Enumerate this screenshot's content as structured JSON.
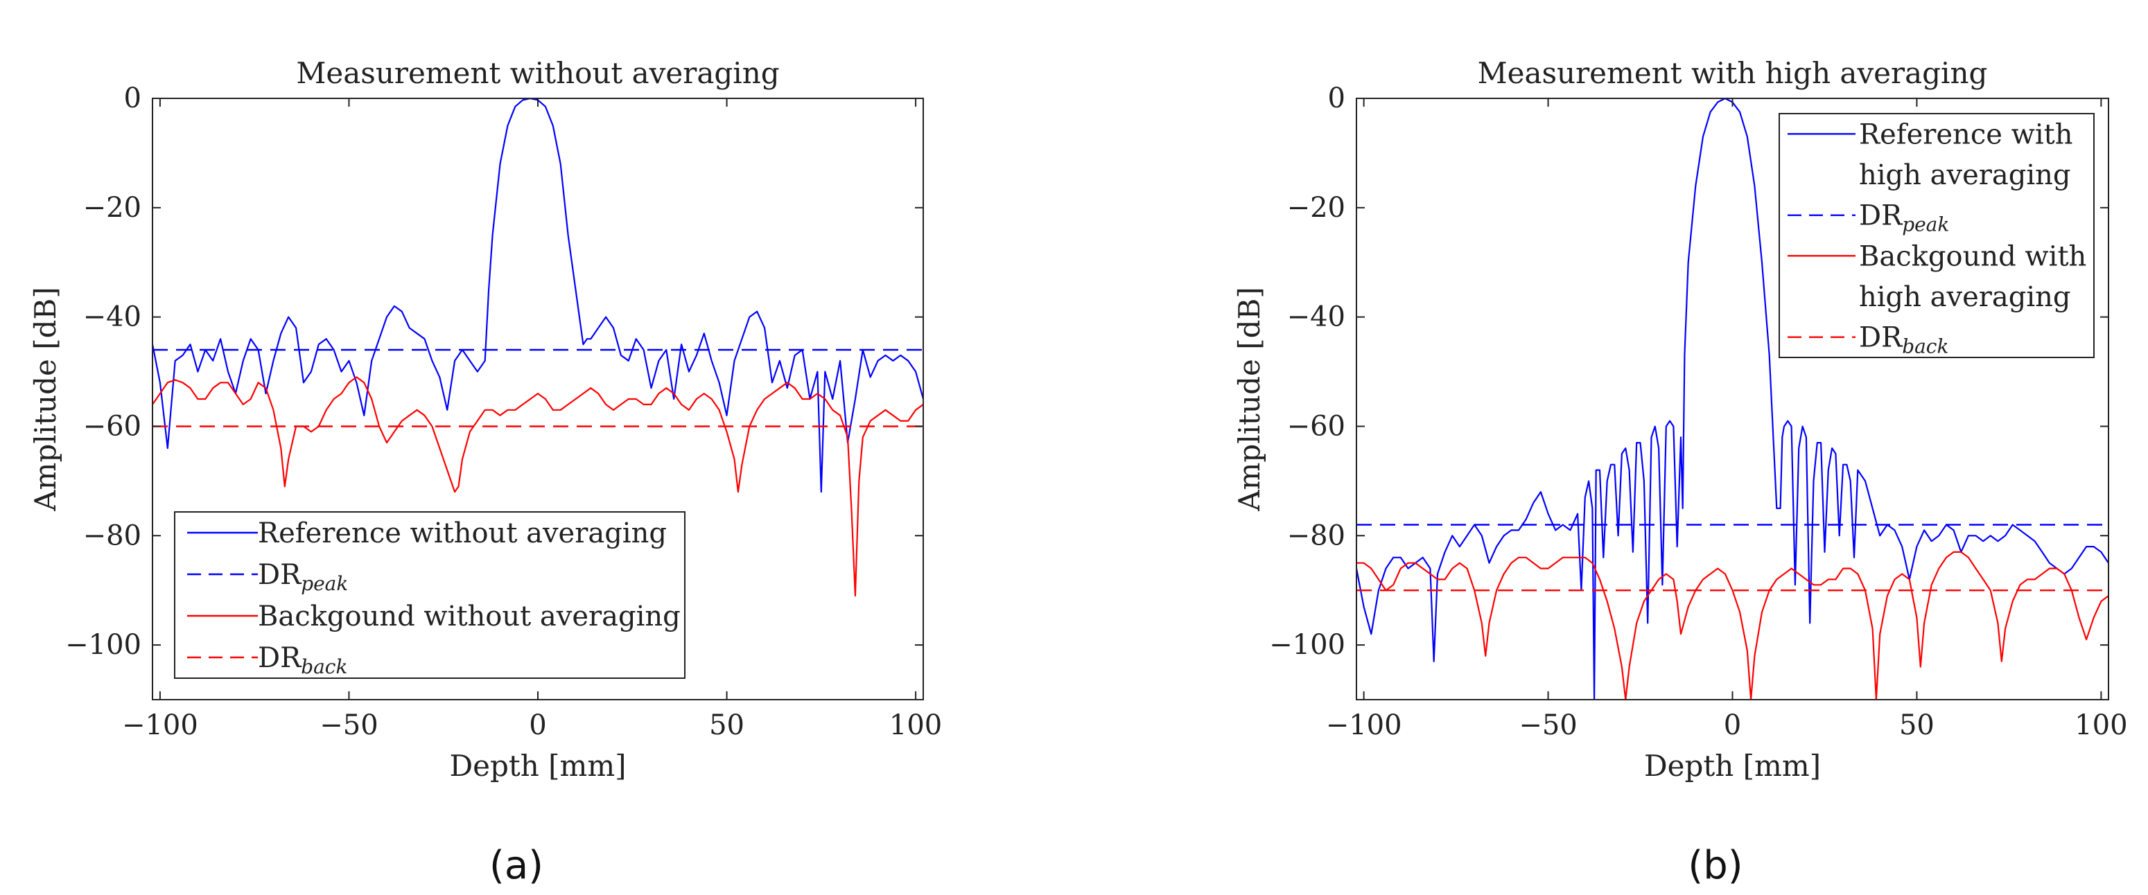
{
  "chart_data": [
    {
      "type": "line",
      "panel_label": "(a)",
      "title": "Measurement without averaging",
      "xlabel": "Depth [mm]",
      "ylabel": "Amplitude [dB]",
      "xlim": [
        -102,
        102
      ],
      "ylim": [
        -110,
        0
      ],
      "xticks": [
        -100,
        -50,
        0,
        50,
        100
      ],
      "yticks": [
        0,
        -20,
        -40,
        -60,
        -80,
        -100
      ],
      "xtick_labels": [
        "−100",
        "−50",
        "0",
        "50",
        "100"
      ],
      "ytick_labels": [
        "0",
        "−20",
        "−40",
        "−60",
        "−80",
        "−100"
      ],
      "legend_position": "bottom-left",
      "series": [
        {
          "name": "Reference without averaging",
          "label_main": "Reference without averaging",
          "label_sub": "",
          "color": "#0000ff",
          "dash": "solid",
          "x": [
            -102,
            -100,
            -98,
            -96,
            -94,
            -92,
            -90,
            -88,
            -86,
            -84,
            -82,
            -80,
            -78,
            -76,
            -74,
            -72,
            -70,
            -68,
            -66,
            -64,
            -62,
            -60,
            -58,
            -56,
            -54,
            -52,
            -50,
            -48,
            -46,
            -44,
            -42,
            -40,
            -38,
            -36,
            -34,
            -32,
            -30,
            -28,
            -26,
            -24,
            -22,
            -20,
            -18,
            -16,
            -14,
            -13,
            -12,
            -10,
            -8,
            -6,
            -4,
            -2,
            0,
            2,
            4,
            6,
            8,
            10,
            12,
            13,
            14,
            16,
            18,
            20,
            22,
            24,
            26,
            28,
            30,
            32,
            34,
            36,
            38,
            40,
            42,
            44,
            46,
            48,
            50,
            52,
            54,
            56,
            58,
            60,
            62,
            64,
            66,
            68,
            70,
            72,
            74,
            75,
            76,
            78,
            80,
            82,
            84,
            86,
            88,
            90,
            92,
            94,
            96,
            98,
            100,
            102
          ],
          "y": [
            -45,
            -52,
            -64,
            -48,
            -47,
            -45,
            -50,
            -46,
            -48,
            -44,
            -50,
            -54,
            -48,
            -44,
            -46,
            -54,
            -48,
            -43,
            -40,
            -42,
            -52,
            -50,
            -45,
            -44,
            -46,
            -50,
            -48,
            -52,
            -58,
            -48,
            -44,
            -40,
            -38,
            -39,
            -42,
            -43,
            -44,
            -48,
            -51,
            -57,
            -48,
            -46,
            -48,
            -50,
            -48,
            -35,
            -25,
            -12,
            -5,
            -1.5,
            -0.3,
            0,
            -0.3,
            -1.5,
            -5,
            -12,
            -25,
            -35,
            -45,
            -44,
            -44,
            -42,
            -40,
            -42,
            -47,
            -48,
            -44,
            -46,
            -53,
            -48,
            -46,
            -55,
            -45,
            -50,
            -47,
            -43,
            -48,
            -52,
            -58,
            -48,
            -44,
            -40,
            -39,
            -42,
            -52,
            -48,
            -53,
            -47,
            -46,
            -55,
            -50,
            -72,
            -50,
            -55,
            -48,
            -63,
            -55,
            -46,
            -51,
            -48,
            -47,
            -48,
            -47,
            -48,
            -50,
            -55
          ]
        },
        {
          "name": "DR_peak",
          "label_main": "DR",
          "label_sub": "peak",
          "color": "#0000ff",
          "dash": "dashed",
          "x": [
            -102,
            102
          ],
          "y": [
            -46,
            -46
          ]
        },
        {
          "name": "Backgound without averaging",
          "label_main": "Backgound without averaging",
          "label_sub": "",
          "color": "#ff0000",
          "dash": "solid",
          "x": [
            -102,
            -100,
            -98,
            -96,
            -94,
            -92,
            -90,
            -88,
            -86,
            -84,
            -82,
            -80,
            -78,
            -76,
            -74,
            -72,
            -70,
            -68,
            -67,
            -66,
            -64,
            -62,
            -60,
            -58,
            -56,
            -54,
            -52,
            -50,
            -48,
            -46,
            -44,
            -42,
            -40,
            -38,
            -36,
            -34,
            -32,
            -30,
            -28,
            -26,
            -24,
            -22,
            -21,
            -20,
            -18,
            -16,
            -14,
            -12,
            -10,
            -8,
            -6,
            -4,
            -2,
            0,
            2,
            4,
            6,
            8,
            10,
            12,
            14,
            16,
            18,
            20,
            22,
            24,
            26,
            28,
            30,
            32,
            34,
            36,
            38,
            40,
            42,
            44,
            46,
            48,
            50,
            52,
            53,
            54,
            56,
            58,
            60,
            62,
            64,
            66,
            68,
            70,
            72,
            74,
            76,
            78,
            80,
            82,
            83,
            84,
            85,
            86,
            88,
            90,
            92,
            94,
            96,
            98,
            100,
            102
          ],
          "y": [
            -56,
            -54,
            -52,
            -51.5,
            -52,
            -53,
            -55,
            -55,
            -53,
            -52,
            -52,
            -54,
            -56,
            -55,
            -52,
            -53,
            -57,
            -64,
            -71,
            -66,
            -60,
            -60,
            -61,
            -60,
            -57,
            -55,
            -54,
            -52,
            -51,
            -52,
            -55,
            -60,
            -63,
            -61,
            -59,
            -58,
            -57,
            -58,
            -60,
            -64,
            -68,
            -72,
            -71,
            -66,
            -61,
            -59,
            -57,
            -57,
            -58,
            -57,
            -57,
            -56,
            -55,
            -54,
            -55,
            -57,
            -57,
            -56,
            -55,
            -54,
            -53,
            -54,
            -56,
            -57,
            -56,
            -55,
            -55,
            -56,
            -56,
            -54,
            -53,
            -54,
            -56,
            -57,
            -55,
            -54,
            -55,
            -57,
            -61,
            -66,
            -72,
            -67,
            -60,
            -57,
            -55,
            -54,
            -53,
            -52,
            -53,
            -55,
            -55,
            -54,
            -55,
            -57,
            -58,
            -62,
            -75,
            -91,
            -70,
            -62,
            -59,
            -58,
            -57,
            -58,
            -59,
            -59,
            -57,
            -56
          ]
        },
        {
          "name": "DR_back",
          "label_main": "DR",
          "label_sub": "back",
          "color": "#ff0000",
          "dash": "dashed",
          "x": [
            -102,
            102
          ],
          "y": [
            -60,
            -60
          ]
        }
      ]
    },
    {
      "type": "line",
      "panel_label": "(b)",
      "title": "Measurement with high averaging",
      "xlabel": "Depth [mm]",
      "ylabel": "Amplitude [dB]",
      "xlim": [
        -102,
        102
      ],
      "ylim": [
        -110,
        0
      ],
      "xticks": [
        -100,
        -50,
        0,
        50,
        100
      ],
      "yticks": [
        0,
        -20,
        -40,
        -60,
        -80,
        -100
      ],
      "xtick_labels": [
        "−100",
        "−50",
        "0",
        "50",
        "100"
      ],
      "ytick_labels": [
        "0",
        "−20",
        "−40",
        "−60",
        "−80",
        "−100"
      ],
      "legend_position": "top-right",
      "series": [
        {
          "name": "Reference with high averaging",
          "label_main": "Reference with",
          "label_main2": "high averaging",
          "label_sub": "",
          "color": "#0000ff",
          "dash": "solid",
          "x": [
            -102,
            -100,
            -98,
            -96,
            -94,
            -92,
            -90,
            -88,
            -86,
            -84,
            -82,
            -81,
            -80,
            -78,
            -76,
            -74,
            -72,
            -70,
            -68,
            -66,
            -64,
            -62,
            -60,
            -58,
            -56,
            -54,
            -52,
            -50,
            -48,
            -46,
            -44,
            -42,
            -41,
            -40,
            -39,
            -38,
            -37.5,
            -37,
            -36,
            -35,
            -34,
            -33,
            -32,
            -31,
            -30,
            -29,
            -28,
            -27,
            -26,
            -25,
            -24,
            -23,
            -22,
            -21,
            -20,
            -19,
            -18,
            -17,
            -16,
            -15,
            -14,
            -13.5,
            -13,
            -12,
            -10,
            -8,
            -6,
            -4,
            -2,
            0,
            2,
            4,
            6,
            8,
            10,
            12,
            13,
            13.5,
            14,
            15,
            16,
            17,
            18,
            19,
            20,
            21,
            22,
            23,
            24,
            25,
            26,
            27,
            28,
            29,
            30,
            31,
            32,
            33,
            34,
            36,
            38,
            40,
            42,
            44,
            46,
            48,
            50,
            52,
            54,
            56,
            58,
            60,
            62,
            64,
            66,
            68,
            70,
            72,
            74,
            76,
            78,
            80,
            82,
            84,
            86,
            88,
            90,
            92,
            94,
            96,
            98,
            100,
            102
          ],
          "y": [
            -86,
            -93,
            -98,
            -90,
            -86,
            -84,
            -84,
            -86,
            -85,
            -84,
            -86,
            -103,
            -87,
            -83,
            -80,
            -82,
            -80,
            -78,
            -80,
            -85,
            -82,
            -80,
            -79,
            -79,
            -77,
            -74,
            -72,
            -76,
            -79,
            -78,
            -79,
            -76,
            -90,
            -73,
            -70,
            -75,
            -110,
            -68,
            -68,
            -84,
            -70,
            -67,
            -67,
            -80,
            -65,
            -64,
            -68,
            -83,
            -63,
            -63,
            -70,
            -96,
            -62,
            -60,
            -64,
            -89,
            -60,
            -59,
            -60,
            -82,
            -62,
            -75,
            -47,
            -30,
            -16,
            -7,
            -2.5,
            -0.7,
            0,
            -0.7,
            -2.5,
            -7,
            -16,
            -30,
            -47,
            -75,
            -75,
            -62,
            -60,
            -59,
            -60,
            -89,
            -64,
            -60,
            -62,
            -96,
            -70,
            -63,
            -63,
            -83,
            -68,
            -64,
            -65,
            -80,
            -67,
            -67,
            -70,
            -84,
            -68,
            -70,
            -75,
            -80,
            -78,
            -79,
            -82,
            -88,
            -82,
            -79,
            -81,
            -80,
            -78,
            -79,
            -83,
            -80,
            -80,
            -81,
            -80,
            -81,
            -80,
            -78,
            -79,
            -80,
            -81,
            -83,
            -85,
            -86,
            -87,
            -86,
            -84,
            -82,
            -82,
            -83,
            -85
          ]
        },
        {
          "name": "DR_peak",
          "label_main": "DR",
          "label_sub": "peak",
          "color": "#0000ff",
          "dash": "dashed",
          "x": [
            -102,
            102
          ],
          "y": [
            -78,
            -78
          ]
        },
        {
          "name": "Backgound with high averaging",
          "label_main": "Backgound with",
          "label_main2": "high averaging",
          "label_sub": "",
          "color": "#ff0000",
          "dash": "solid",
          "x": [
            -102,
            -100,
            -98,
            -96,
            -94,
            -92,
            -90,
            -88,
            -86,
            -84,
            -82,
            -80,
            -78,
            -76,
            -74,
            -72,
            -70,
            -68,
            -67,
            -66,
            -64,
            -62,
            -60,
            -58,
            -56,
            -54,
            -52,
            -50,
            -48,
            -46,
            -44,
            -42,
            -40,
            -38,
            -36,
            -34,
            -32,
            -30,
            -29,
            -28,
            -26,
            -24,
            -22,
            -20,
            -18,
            -16,
            -15,
            -14,
            -12,
            -10,
            -8,
            -6,
            -4,
            -2,
            0,
            2,
            4,
            5,
            6,
            8,
            10,
            12,
            14,
            16,
            18,
            20,
            22,
            24,
            26,
            28,
            30,
            32,
            34,
            36,
            38,
            39,
            40,
            42,
            44,
            46,
            48,
            50,
            51,
            52,
            54,
            56,
            58,
            60,
            62,
            64,
            66,
            68,
            70,
            72,
            73,
            74,
            76,
            78,
            80,
            82,
            84,
            86,
            88,
            90,
            92,
            94,
            96,
            98,
            100,
            102
          ],
          "y": [
            -85,
            -85,
            -86,
            -88,
            -90,
            -89,
            -86,
            -85,
            -85,
            -86,
            -87,
            -88,
            -88,
            -86,
            -85,
            -86,
            -90,
            -96,
            -102,
            -96,
            -90,
            -87,
            -85,
            -84,
            -84,
            -85,
            -86,
            -86,
            -85,
            -84,
            -84,
            -84,
            -84,
            -85,
            -88,
            -92,
            -97,
            -104,
            -110,
            -104,
            -96,
            -92,
            -90,
            -88,
            -87,
            -88,
            -92,
            -98,
            -93,
            -90,
            -88,
            -87,
            -86,
            -87,
            -90,
            -94,
            -101,
            -110,
            -102,
            -94,
            -90,
            -88,
            -87,
            -86,
            -87,
            -88,
            -89,
            -89,
            -88,
            -88,
            -86,
            -86,
            -87,
            -90,
            -97,
            -110,
            -98,
            -91,
            -88,
            -87,
            -88,
            -95,
            -104,
            -96,
            -89,
            -86,
            -84,
            -83,
            -83,
            -84,
            -86,
            -88,
            -90,
            -96,
            -103,
            -97,
            -92,
            -89,
            -88,
            -88,
            -87,
            -86,
            -86,
            -87,
            -90,
            -95,
            -99,
            -95,
            -92,
            -91
          ]
        },
        {
          "name": "DR_back",
          "label_main": "DR",
          "label_sub": "back",
          "color": "#ff0000",
          "dash": "dashed",
          "x": [
            -102,
            102
          ],
          "y": [
            -90,
            -90
          ]
        }
      ]
    }
  ]
}
